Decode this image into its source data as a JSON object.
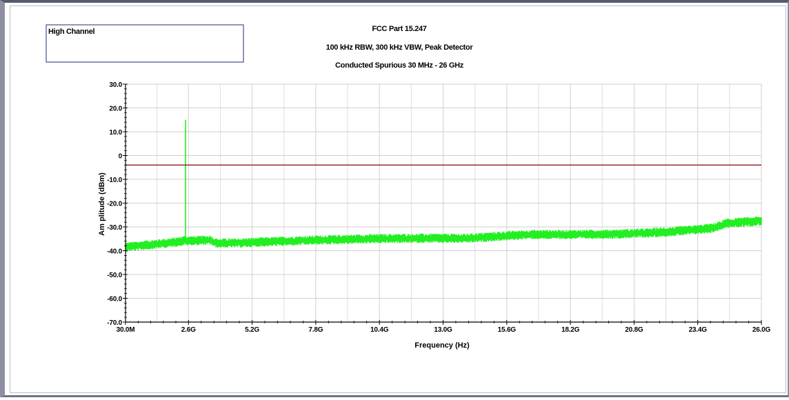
{
  "legend_box": {
    "text": "High Channel"
  },
  "chart_data": {
    "type": "line",
    "title": "FCC Part 15.247",
    "subtitle_1": "100 kHz RBW, 300 kHz VBW, Peak Detector",
    "subtitle_2": "Conducted Spurious 30 MHz - 26 GHz",
    "xlabel": "Frequency (Hz)",
    "ylabel": "Am plitude (dBm)",
    "x_unit": "GHz",
    "xlim": [
      0.03,
      26.0
    ],
    "ylim": [
      -70,
      30
    ],
    "x_ticks": [
      {
        "value": 0.03,
        "label": "30.0M"
      },
      {
        "value": 2.6,
        "label": "2.6G"
      },
      {
        "value": 5.2,
        "label": "5.2G"
      },
      {
        "value": 7.8,
        "label": "7.8G"
      },
      {
        "value": 10.4,
        "label": "10.4G"
      },
      {
        "value": 13.0,
        "label": "13.0G"
      },
      {
        "value": 15.6,
        "label": "15.6G"
      },
      {
        "value": 18.2,
        "label": "18.2G"
      },
      {
        "value": 20.8,
        "label": "20.8G"
      },
      {
        "value": 23.4,
        "label": "23.4G"
      },
      {
        "value": 26.0,
        "label": "26.0G"
      }
    ],
    "y_ticks": [
      {
        "value": 30,
        "label": "30.0"
      },
      {
        "value": 20,
        "label": "20.0"
      },
      {
        "value": 10,
        "label": "10.0"
      },
      {
        "value": 0,
        "label": "0"
      },
      {
        "value": -10,
        "label": "-10.0"
      },
      {
        "value": -20,
        "label": "-20.0"
      },
      {
        "value": -30,
        "label": "-30.0"
      },
      {
        "value": -40,
        "label": "-40.0"
      },
      {
        "value": -50,
        "label": "-50.0"
      },
      {
        "value": -60,
        "label": "-60.0"
      },
      {
        "value": -70,
        "label": "-70.0"
      }
    ],
    "grid": true,
    "limit_line": {
      "value": -4.0,
      "color": "#8b1a1a"
    },
    "series": [
      {
        "color": "#22ee22",
        "noise_band_db": 2.0,
        "x": [
          0.03,
          1.0,
          2.0,
          2.4,
          2.45,
          2.48,
          2.52,
          3.0,
          3.5,
          3.7,
          4.5,
          6.0,
          8.0,
          10.0,
          12.0,
          14.0,
          15.5,
          16.5,
          18.0,
          20.0,
          21.5,
          23.0,
          24.0,
          24.6,
          25.2,
          26.0
        ],
        "y": [
          -38.5,
          -37.5,
          -36.5,
          -35.8,
          -35.5,
          -36.0,
          -35.8,
          -35.8,
          -35.5,
          -36.8,
          -36.8,
          -36.2,
          -35.5,
          -35.0,
          -34.8,
          -34.8,
          -33.8,
          -33.2,
          -33.2,
          -33.0,
          -32.5,
          -31.5,
          -30.5,
          -28.5,
          -28.0,
          -27.5
        ]
      }
    ],
    "peak": {
      "x": 2.48,
      "y": 15.0
    }
  }
}
